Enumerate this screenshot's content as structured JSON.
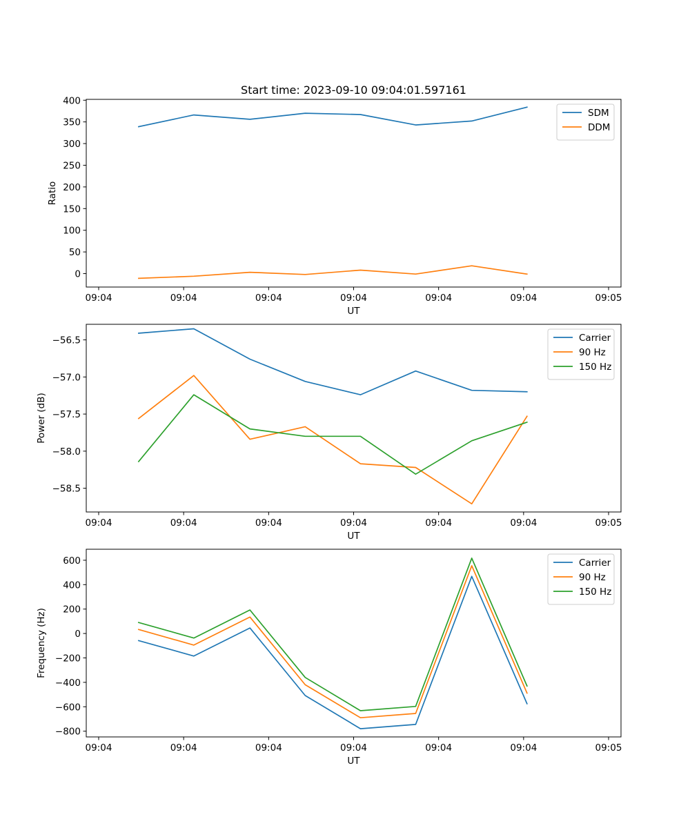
{
  "chart_data": [
    {
      "type": "line",
      "title": "Start time: 2023-09-10 09:04:01.597161",
      "xlabel": "UT",
      "ylabel": "Ratio",
      "xtick_labels": [
        "09:04",
        "09:04",
        "09:04",
        "09:04",
        "09:04",
        "09:04",
        "09:05"
      ],
      "xlim": [
        0,
        6
      ],
      "ylim": [
        -31,
        402
      ],
      "yticks": [
        0,
        50,
        100,
        150,
        200,
        250,
        300,
        350,
        400
      ],
      "x": [
        0.47,
        1.12,
        1.78,
        2.43,
        3.08,
        3.73,
        4.39,
        5.04
      ],
      "legend": "top-right",
      "grid": false,
      "series": [
        {
          "name": "SDM",
          "color": "#1f77b4",
          "values": [
            339,
            366,
            356,
            370,
            367,
            343,
            352,
            384
          ]
        },
        {
          "name": "DDM",
          "color": "#ff7f0e",
          "values": [
            -11,
            -6,
            3,
            -2,
            8,
            -1,
            18,
            -1
          ]
        }
      ]
    },
    {
      "type": "line",
      "title": "",
      "xlabel": "UT",
      "ylabel": "Power (dB)",
      "xtick_labels": [
        "09:04",
        "09:04",
        "09:04",
        "09:04",
        "09:04",
        "09:04",
        "09:05"
      ],
      "xlim": [
        0,
        6
      ],
      "ylim": [
        -58.82,
        -56.29
      ],
      "yticks": [
        -58.5,
        -58.0,
        -57.5,
        -57.0,
        -56.5
      ],
      "x": [
        0.47,
        1.12,
        1.78,
        2.43,
        3.08,
        3.73,
        4.39,
        5.04
      ],
      "legend": "top-right",
      "grid": false,
      "series": [
        {
          "name": "Carrier",
          "color": "#1f77b4",
          "values": [
            -56.41,
            -56.35,
            -56.76,
            -57.06,
            -57.24,
            -56.92,
            -57.18,
            -57.2
          ]
        },
        {
          "name": "90 Hz",
          "color": "#ff7f0e",
          "values": [
            -57.56,
            -56.98,
            -57.84,
            -57.67,
            -58.17,
            -58.22,
            -58.71,
            -57.53
          ]
        },
        {
          "name": "150 Hz",
          "color": "#2ca02c",
          "values": [
            -58.14,
            -57.24,
            -57.7,
            -57.8,
            -57.8,
            -58.31,
            -57.86,
            -57.61
          ]
        }
      ]
    },
    {
      "type": "line",
      "title": "",
      "xlabel": "UT",
      "ylabel": "Frequency (Hz)",
      "xtick_labels": [
        "09:04",
        "09:04",
        "09:04",
        "09:04",
        "09:04",
        "09:04",
        "09:05"
      ],
      "xlim": [
        0,
        6
      ],
      "ylim": [
        -847,
        690
      ],
      "yticks": [
        -800,
        -600,
        -400,
        -200,
        0,
        200,
        400,
        600
      ],
      "x": [
        0.47,
        1.12,
        1.78,
        2.43,
        3.08,
        3.73,
        4.39,
        5.04
      ],
      "legend": "top-right",
      "grid": false,
      "series": [
        {
          "name": "Carrier",
          "color": "#1f77b4",
          "values": [
            -58,
            -185,
            45,
            -508,
            -780,
            -745,
            468,
            -575
          ]
        },
        {
          "name": "90 Hz",
          "color": "#ff7f0e",
          "values": [
            33,
            -95,
            135,
            -420,
            -690,
            -655,
            555,
            -488
          ]
        },
        {
          "name": "150 Hz",
          "color": "#2ca02c",
          "values": [
            90,
            -37,
            193,
            -360,
            -632,
            -597,
            617,
            -430
          ]
        }
      ]
    }
  ]
}
